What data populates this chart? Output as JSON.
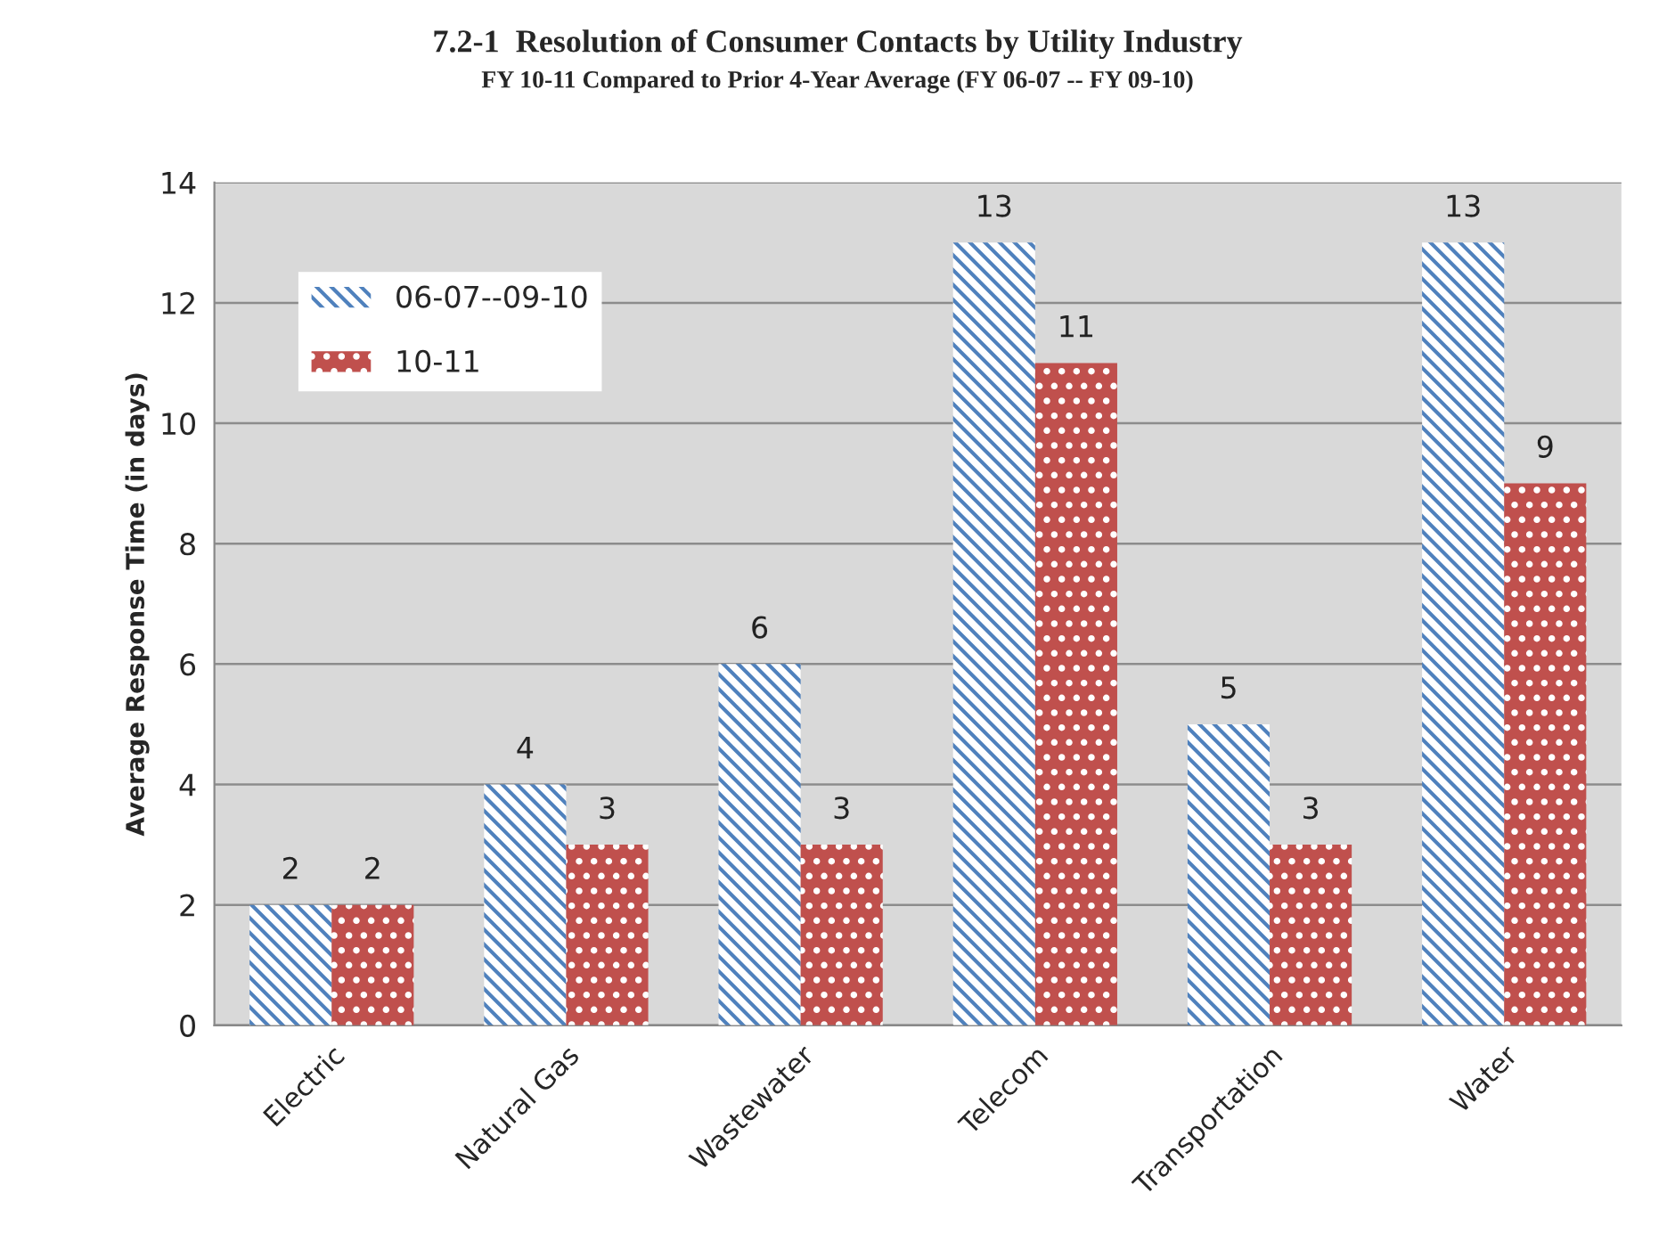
{
  "chart_data": {
    "type": "bar",
    "title": "7.2-1  Resolution of Consumer Contacts by Utility Industry",
    "subtitle": "FY 10-11 Compared to Prior 4-Year Average (FY 06-07 -- FY 09-10)",
    "ylabel": "Average Response Time (in days)",
    "categories": [
      "Electric",
      "Natural Gas",
      "Wastewater",
      "Telecom",
      "Transportation",
      "Water"
    ],
    "series": [
      {
        "name": "06-07--09-10",
        "color": "#4f81bd",
        "values": [
          2,
          4,
          6,
          13,
          5,
          13
        ]
      },
      {
        "name": "10-11",
        "color": "#c0504d",
        "values": [
          2,
          3,
          3,
          11,
          3,
          9
        ]
      }
    ],
    "ylim": [
      0,
      14
    ],
    "yticks": [
      0,
      2,
      4,
      6,
      8,
      10,
      12,
      14
    ],
    "grid": "y",
    "legend": "top left",
    "data_labels": true
  }
}
